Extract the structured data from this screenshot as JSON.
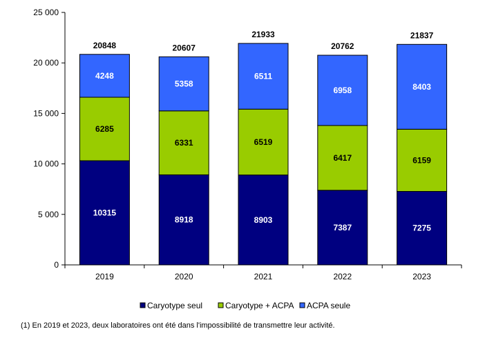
{
  "chart_data": {
    "type": "bar",
    "stacked": true,
    "categories": [
      "2019",
      "2020",
      "2021",
      "2022",
      "2023"
    ],
    "series": [
      {
        "name": "Caryotype seul",
        "color": "#000080",
        "values": [
          10315,
          8918,
          8903,
          7387,
          7275
        ]
      },
      {
        "name": "Caryotype + ACPA",
        "color": "#99CC00",
        "values": [
          6285,
          6331,
          6519,
          6417,
          6159
        ]
      },
      {
        "name": "ACPA seule",
        "color": "#3366FF",
        "values": [
          4248,
          5358,
          6511,
          6958,
          8403
        ]
      }
    ],
    "totals": [
      20848,
      20607,
      21933,
      20762,
      21837
    ],
    "ylim": [
      0,
      25000
    ],
    "yticks": [
      0,
      5000,
      10000,
      15000,
      20000,
      25000
    ],
    "ytick_labels": [
      "0",
      "5 000",
      "10 000",
      "15 000",
      "20 000",
      "25 000"
    ],
    "grid": false,
    "legend_position": "bottom"
  },
  "footnote": "(1) En 2019 et 2023, deux laboratoires ont été dans l'impossibilité de transmettre leur activité."
}
